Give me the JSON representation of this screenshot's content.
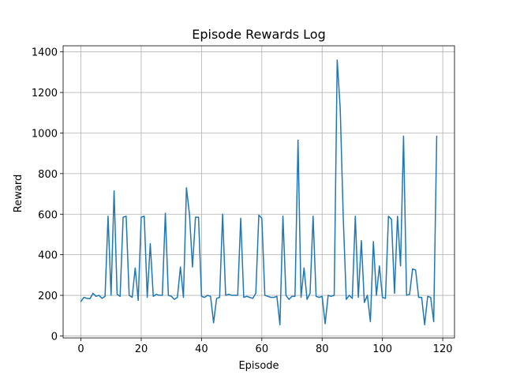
{
  "chart_data": {
    "type": "line",
    "title": "Episode Rewards Log",
    "xlabel": "Episode",
    "ylabel": "Reward",
    "xlim": [
      -5.9,
      123.9
    ],
    "ylim": [
      -10,
      1430
    ],
    "xticks": [
      0,
      20,
      40,
      60,
      80,
      100,
      120
    ],
    "yticks": [
      0,
      200,
      400,
      600,
      800,
      1000,
      1200,
      1400
    ],
    "grid": true,
    "legend": "none",
    "series": [
      {
        "color": "#1f77b4",
        "x": [
          0,
          1,
          2,
          3,
          4,
          5,
          6,
          7,
          8,
          9,
          10,
          11,
          12,
          13,
          14,
          15,
          16,
          17,
          18,
          19,
          20,
          21,
          22,
          23,
          24,
          25,
          26,
          27,
          28,
          29,
          30,
          31,
          32,
          33,
          34,
          35,
          36,
          37,
          38,
          39,
          40,
          41,
          42,
          43,
          44,
          45,
          46,
          47,
          48,
          49,
          50,
          51,
          52,
          53,
          54,
          55,
          56,
          57,
          58,
          59,
          60,
          61,
          62,
          63,
          64,
          65,
          66,
          67,
          68,
          69,
          70,
          71,
          72,
          73,
          74,
          75,
          76,
          77,
          78,
          79,
          80,
          81,
          82,
          83,
          84,
          85,
          86,
          87,
          88,
          89,
          90,
          91,
          92,
          93,
          94,
          95,
          96,
          97,
          98,
          99,
          100,
          101,
          102,
          103,
          104,
          105,
          106,
          107,
          108,
          109,
          110,
          111,
          112,
          113,
          114,
          115,
          116,
          117,
          118
        ],
        "values": [
          170,
          190,
          185,
          183,
          210,
          195,
          200,
          185,
          195,
          590,
          200,
          715,
          205,
          195,
          585,
          590,
          200,
          190,
          335,
          175,
          585,
          590,
          190,
          455,
          195,
          205,
          200,
          200,
          605,
          200,
          195,
          180,
          190,
          340,
          190,
          730,
          600,
          340,
          585,
          585,
          195,
          190,
          200,
          195,
          65,
          185,
          190,
          600,
          200,
          205,
          200,
          200,
          200,
          580,
          190,
          195,
          190,
          185,
          210,
          595,
          580,
          200,
          195,
          190,
          190,
          195,
          55,
          590,
          200,
          180,
          195,
          195,
          965,
          190,
          335,
          180,
          210,
          590,
          195,
          190,
          195,
          60,
          200,
          195,
          200,
          1360,
          1120,
          585,
          180,
          200,
          185,
          590,
          190,
          470,
          165,
          200,
          70,
          465,
          200,
          345,
          190,
          185,
          590,
          575,
          210,
          590,
          345,
          985,
          200,
          205,
          330,
          325,
          190,
          190,
          55,
          195,
          190,
          70,
          985
        ]
      }
    ]
  }
}
